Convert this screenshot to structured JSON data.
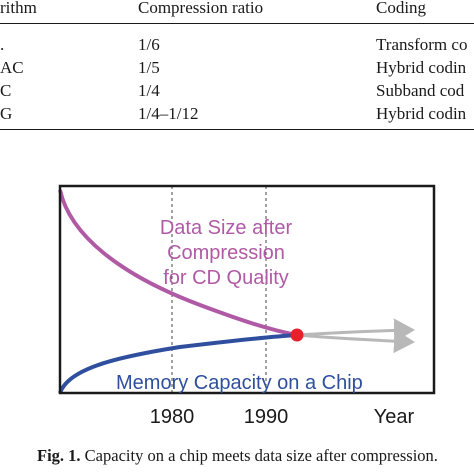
{
  "table": {
    "headers": [
      "rithm",
      "Compression ratio",
      "Coding"
    ],
    "rows": [
      {
        "algorithm": ".",
        "ratio": "1/6",
        "coding": "Transform co"
      },
      {
        "algorithm": "AC",
        "ratio": "1/5",
        "coding": "Hybrid codin"
      },
      {
        "algorithm": "C",
        "ratio": "1/4",
        "coding": "Subband cod"
      },
      {
        "algorithm": "G",
        "ratio": "1/4–1/12",
        "coding": "Hybrid codin"
      }
    ]
  },
  "figure": {
    "labels": {
      "data_size_line1": "Data Size after",
      "data_size_line2": "Compression",
      "data_size_line3": "for CD Quality",
      "memory": "Memory Capacity on a Chip"
    },
    "x_ticks": [
      "1980",
      "1990"
    ],
    "x_axis_label": "Year",
    "colors": {
      "data_size_curve": "#b05aa6",
      "memory_curve": "#2f4f9e",
      "intersection_marker": "#e8202a",
      "extension_arrows": "#b8b8b8",
      "data_size_text": "#b05aa6",
      "memory_text": "#2f4f9e"
    }
  },
  "caption": {
    "label": "Fig. 1.",
    "text": "Capacity on a chip meets data size after compression."
  }
}
